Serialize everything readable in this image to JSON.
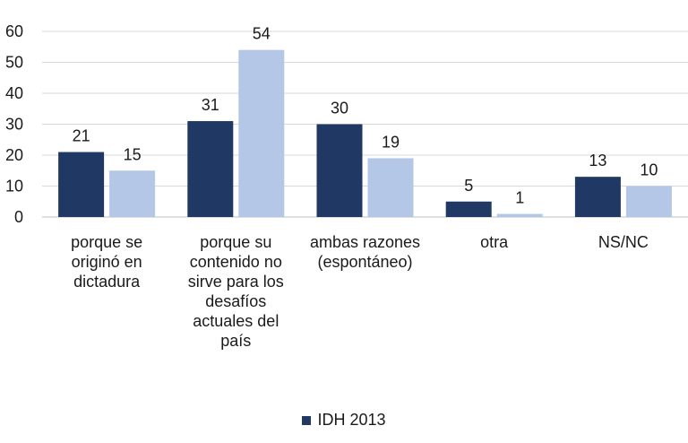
{
  "chart_data": {
    "type": "bar",
    "title": "",
    "xlabel": "",
    "ylabel": "",
    "ylim": [
      0,
      60
    ],
    "yticks": [
      0,
      10,
      20,
      30,
      40,
      50,
      60
    ],
    "grid": true,
    "legend_position": "bottom",
    "categories": [
      "porque se originó en dictadura",
      "porque su contenido no sirve para los desafíos actuales del país",
      "ambas razones (espontáneo)",
      "otra",
      "NS/NC"
    ],
    "series": [
      {
        "name": "IDH 2013",
        "color": "#203864",
        "values": [
          21,
          31,
          30,
          5,
          13
        ]
      },
      {
        "color": "#b4c7e7",
        "values": [
          15,
          54,
          19,
          1,
          10
        ]
      }
    ]
  }
}
